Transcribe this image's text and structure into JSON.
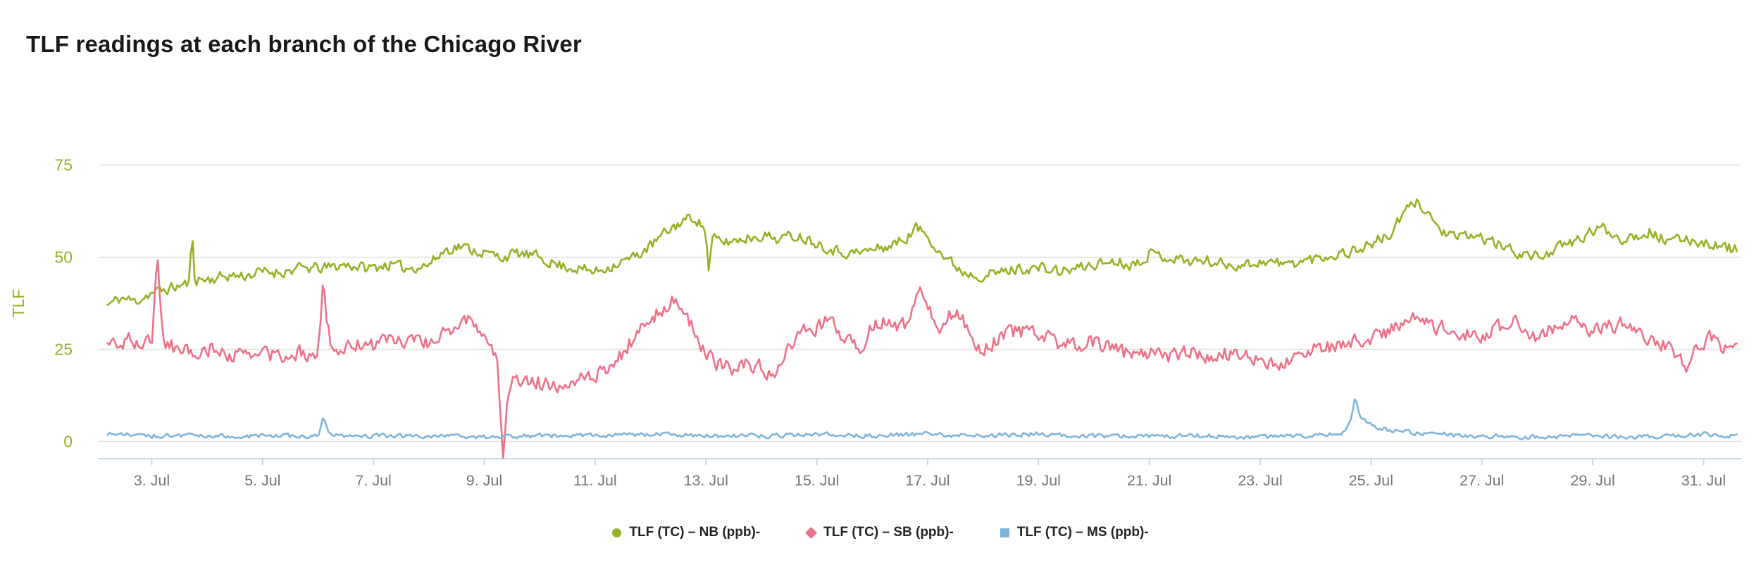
{
  "header": {
    "title": "TLF readings at each branch of the Chicago River"
  },
  "chart_data": {
    "type": "line",
    "title": "TLF readings at each branch of the Chicago River",
    "xlabel": "",
    "ylabel": "TLF",
    "axis_color": "#94b223",
    "grid": true,
    "legend_position": "bottom-center",
    "x_domain_july_days": [
      2.2,
      31.6
    ],
    "y_domain": [
      -7,
      81
    ],
    "y_ticks": [
      {
        "value": 0,
        "label": "0"
      },
      {
        "value": 25,
        "label": "25"
      },
      {
        "value": 50,
        "label": "50"
      },
      {
        "value": 75,
        "label": "75"
      }
    ],
    "x_ticks": [
      {
        "day": 3,
        "label": "3. Jul"
      },
      {
        "day": 5,
        "label": "5. Jul"
      },
      {
        "day": 7,
        "label": "7. Jul"
      },
      {
        "day": 9,
        "label": "9. Jul"
      },
      {
        "day": 11,
        "label": "11. Jul"
      },
      {
        "day": 13,
        "label": "13. Jul"
      },
      {
        "day": 15,
        "label": "15. Jul"
      },
      {
        "day": 17,
        "label": "17. Jul"
      },
      {
        "day": 19,
        "label": "19. Jul"
      },
      {
        "day": 21,
        "label": "21. Jul"
      },
      {
        "day": 23,
        "label": "23. Jul"
      },
      {
        "day": 25,
        "label": "25. Jul"
      },
      {
        "day": 27,
        "label": "27. Jul"
      },
      {
        "day": 29,
        "label": "29. Jul"
      },
      {
        "day": 31,
        "label": "31. Jul"
      }
    ],
    "series": [
      {
        "name": "TLF (TC) – NB (ppb)-",
        "color": "#94b223",
        "marker": "circle",
        "noise_amplitude_ppb": 1.4,
        "points": [
          [
            2.2,
            37
          ],
          [
            2.45,
            39
          ],
          [
            2.7,
            38
          ],
          [
            2.95,
            40
          ],
          [
            3.2,
            41
          ],
          [
            3.45,
            42
          ],
          [
            3.68,
            43
          ],
          [
            3.73,
            57
          ],
          [
            3.78,
            44
          ],
          [
            4.05,
            44
          ],
          [
            4.35,
            45
          ],
          [
            4.7,
            45
          ],
          [
            5.0,
            46
          ],
          [
            5.35,
            46
          ],
          [
            5.7,
            47
          ],
          [
            6.1,
            47
          ],
          [
            6.5,
            48
          ],
          [
            6.9,
            47
          ],
          [
            7.25,
            48
          ],
          [
            7.6,
            47
          ],
          [
            8.0,
            48
          ],
          [
            8.3,
            52
          ],
          [
            8.55,
            53
          ],
          [
            8.8,
            52
          ],
          [
            9.05,
            51
          ],
          [
            9.3,
            50
          ],
          [
            9.6,
            51
          ],
          [
            10.0,
            50
          ],
          [
            10.3,
            48
          ],
          [
            10.65,
            47
          ],
          [
            11.0,
            46
          ],
          [
            11.35,
            48
          ],
          [
            11.7,
            50
          ],
          [
            12.0,
            53
          ],
          [
            12.3,
            57
          ],
          [
            12.6,
            60
          ],
          [
            12.8,
            61
          ],
          [
            13.0,
            57
          ],
          [
            13.05,
            46
          ],
          [
            13.12,
            55
          ],
          [
            13.35,
            54
          ],
          [
            13.65,
            55
          ],
          [
            14.0,
            56
          ],
          [
            14.3,
            55
          ],
          [
            14.65,
            56
          ],
          [
            15.0,
            54
          ],
          [
            15.3,
            52
          ],
          [
            15.65,
            51
          ],
          [
            16.0,
            52
          ],
          [
            16.3,
            53
          ],
          [
            16.6,
            55
          ],
          [
            16.8,
            58
          ],
          [
            17.0,
            56
          ],
          [
            17.3,
            50
          ],
          [
            17.65,
            46
          ],
          [
            18.0,
            45
          ],
          [
            18.35,
            46
          ],
          [
            18.7,
            47
          ],
          [
            19.05,
            47
          ],
          [
            19.4,
            46
          ],
          [
            19.7,
            47
          ],
          [
            20.0,
            48
          ],
          [
            20.35,
            49
          ],
          [
            20.7,
            48
          ],
          [
            21.0,
            51
          ],
          [
            21.35,
            50
          ],
          [
            21.7,
            49
          ],
          [
            22.05,
            49
          ],
          [
            22.4,
            48
          ],
          [
            22.75,
            48
          ],
          [
            23.1,
            49
          ],
          [
            23.45,
            48
          ],
          [
            23.8,
            49
          ],
          [
            24.1,
            50
          ],
          [
            24.45,
            51
          ],
          [
            24.75,
            52
          ],
          [
            25.05,
            54
          ],
          [
            25.35,
            56
          ],
          [
            25.6,
            62
          ],
          [
            25.8,
            65
          ],
          [
            26.0,
            63
          ],
          [
            26.2,
            58
          ],
          [
            26.5,
            55
          ],
          [
            26.8,
            56
          ],
          [
            27.05,
            55
          ],
          [
            27.35,
            53
          ],
          [
            27.7,
            51
          ],
          [
            28.0,
            50
          ],
          [
            28.3,
            52
          ],
          [
            28.65,
            54
          ],
          [
            29.0,
            57
          ],
          [
            29.2,
            58
          ],
          [
            29.5,
            55
          ],
          [
            29.8,
            56
          ],
          [
            30.05,
            57
          ],
          [
            30.35,
            54
          ],
          [
            30.7,
            55
          ],
          [
            31.0,
            54
          ],
          [
            31.3,
            53
          ],
          [
            31.6,
            52
          ]
        ]
      },
      {
        "name": "TLF (TC) – SB (ppb)-",
        "color": "#ee7187",
        "marker": "diamond",
        "noise_amplitude_ppb": 1.9,
        "points": [
          [
            2.2,
            27
          ],
          [
            2.4,
            26
          ],
          [
            2.6,
            28
          ],
          [
            2.8,
            26
          ],
          [
            3.0,
            27
          ],
          [
            3.05,
            40
          ],
          [
            3.1,
            52
          ],
          [
            3.15,
            38
          ],
          [
            3.2,
            27
          ],
          [
            3.5,
            25
          ],
          [
            3.8,
            24
          ],
          [
            4.05,
            25
          ],
          [
            4.35,
            24
          ],
          [
            4.65,
            23
          ],
          [
            5.0,
            24
          ],
          [
            5.3,
            23
          ],
          [
            5.65,
            24
          ],
          [
            6.0,
            24
          ],
          [
            6.05,
            35
          ],
          [
            6.1,
            45
          ],
          [
            6.15,
            33
          ],
          [
            6.25,
            24
          ],
          [
            6.5,
            25
          ],
          [
            6.8,
            27
          ],
          [
            7.0,
            26
          ],
          [
            7.3,
            28
          ],
          [
            7.6,
            27
          ],
          [
            8.0,
            27
          ],
          [
            8.3,
            29
          ],
          [
            8.5,
            32
          ],
          [
            8.7,
            33
          ],
          [
            8.9,
            30
          ],
          [
            9.1,
            28
          ],
          [
            9.25,
            20
          ],
          [
            9.3,
            5
          ],
          [
            9.35,
            -6
          ],
          [
            9.4,
            8
          ],
          [
            9.5,
            18
          ],
          [
            9.7,
            17
          ],
          [
            10.0,
            16
          ],
          [
            10.3,
            15
          ],
          [
            10.6,
            17
          ],
          [
            11.0,
            18
          ],
          [
            11.3,
            20
          ],
          [
            11.6,
            26
          ],
          [
            11.8,
            30
          ],
          [
            12.0,
            33
          ],
          [
            12.2,
            36
          ],
          [
            12.4,
            38
          ],
          [
            12.6,
            35
          ],
          [
            12.8,
            30
          ],
          [
            13.0,
            24
          ],
          [
            13.2,
            21
          ],
          [
            13.5,
            20
          ],
          [
            13.8,
            21
          ],
          [
            14.0,
            20
          ],
          [
            14.2,
            18
          ],
          [
            14.5,
            25
          ],
          [
            14.8,
            30
          ],
          [
            15.0,
            31
          ],
          [
            15.2,
            33
          ],
          [
            15.5,
            28
          ],
          [
            15.8,
            26
          ],
          [
            16.0,
            31
          ],
          [
            16.2,
            33
          ],
          [
            16.5,
            30
          ],
          [
            16.7,
            34
          ],
          [
            16.85,
            43
          ],
          [
            17.0,
            38
          ],
          [
            17.2,
            30
          ],
          [
            17.4,
            34
          ],
          [
            17.6,
            35
          ],
          [
            17.8,
            28
          ],
          [
            18.0,
            25
          ],
          [
            18.3,
            28
          ],
          [
            18.6,
            30
          ],
          [
            19.0,
            29
          ],
          [
            19.3,
            27
          ],
          [
            19.6,
            26
          ],
          [
            20.0,
            27
          ],
          [
            20.3,
            25
          ],
          [
            20.6,
            24
          ],
          [
            21.0,
            24
          ],
          [
            21.3,
            23
          ],
          [
            21.6,
            24
          ],
          [
            22.0,
            23
          ],
          [
            22.3,
            24
          ],
          [
            22.6,
            23
          ],
          [
            23.0,
            22
          ],
          [
            23.3,
            21
          ],
          [
            23.6,
            22
          ],
          [
            24.0,
            25
          ],
          [
            24.3,
            26
          ],
          [
            24.6,
            27
          ],
          [
            25.0,
            28
          ],
          [
            25.3,
            30
          ],
          [
            25.6,
            32
          ],
          [
            25.9,
            34
          ],
          [
            26.2,
            31
          ],
          [
            26.5,
            30
          ],
          [
            26.8,
            29
          ],
          [
            27.0,
            28
          ],
          [
            27.3,
            31
          ],
          [
            27.6,
            32
          ],
          [
            28.0,
            28
          ],
          [
            28.3,
            31
          ],
          [
            28.6,
            33
          ],
          [
            29.0,
            30
          ],
          [
            29.3,
            31
          ],
          [
            29.6,
            32
          ],
          [
            30.0,
            28
          ],
          [
            30.3,
            26
          ],
          [
            30.5,
            24
          ],
          [
            30.7,
            20
          ],
          [
            30.9,
            26
          ],
          [
            31.1,
            28
          ],
          [
            31.3,
            26
          ],
          [
            31.6,
            25
          ]
        ]
      },
      {
        "name": "TLF (TC) – MS (ppb)-",
        "color": "#7fb5da",
        "marker": "square",
        "noise_amplitude_ppb": 0.55,
        "points": [
          [
            2.2,
            2
          ],
          [
            3.0,
            1.5
          ],
          [
            4.0,
            1.5
          ],
          [
            5.0,
            1.5
          ],
          [
            6.0,
            1.5
          ],
          [
            6.05,
            4
          ],
          [
            6.1,
            6.5
          ],
          [
            6.18,
            3
          ],
          [
            6.35,
            1.5
          ],
          [
            7.0,
            1.5
          ],
          [
            8.0,
            1.5
          ],
          [
            9.0,
            1.2
          ],
          [
            10.0,
            1.5
          ],
          [
            11.0,
            1.5
          ],
          [
            12.0,
            2
          ],
          [
            13.0,
            1.5
          ],
          [
            14.0,
            1.5
          ],
          [
            15.0,
            2
          ],
          [
            16.0,
            1.5
          ],
          [
            17.0,
            2
          ],
          [
            18.0,
            1.5
          ],
          [
            19.0,
            2
          ],
          [
            20.0,
            1.5
          ],
          [
            21.0,
            1.5
          ],
          [
            22.0,
            1.5
          ],
          [
            23.0,
            1.2
          ],
          [
            24.0,
            1.5
          ],
          [
            24.5,
            2.5
          ],
          [
            24.65,
            7
          ],
          [
            24.72,
            12
          ],
          [
            24.8,
            7
          ],
          [
            25.0,
            4.5
          ],
          [
            25.3,
            3
          ],
          [
            25.6,
            2.5
          ],
          [
            26.0,
            2
          ],
          [
            27.0,
            1.5
          ],
          [
            28.0,
            1.2
          ],
          [
            29.0,
            1.5
          ],
          [
            30.0,
            1.2
          ],
          [
            30.5,
            1.5
          ],
          [
            31.0,
            2
          ],
          [
            31.6,
            1.5
          ]
        ]
      }
    ]
  }
}
